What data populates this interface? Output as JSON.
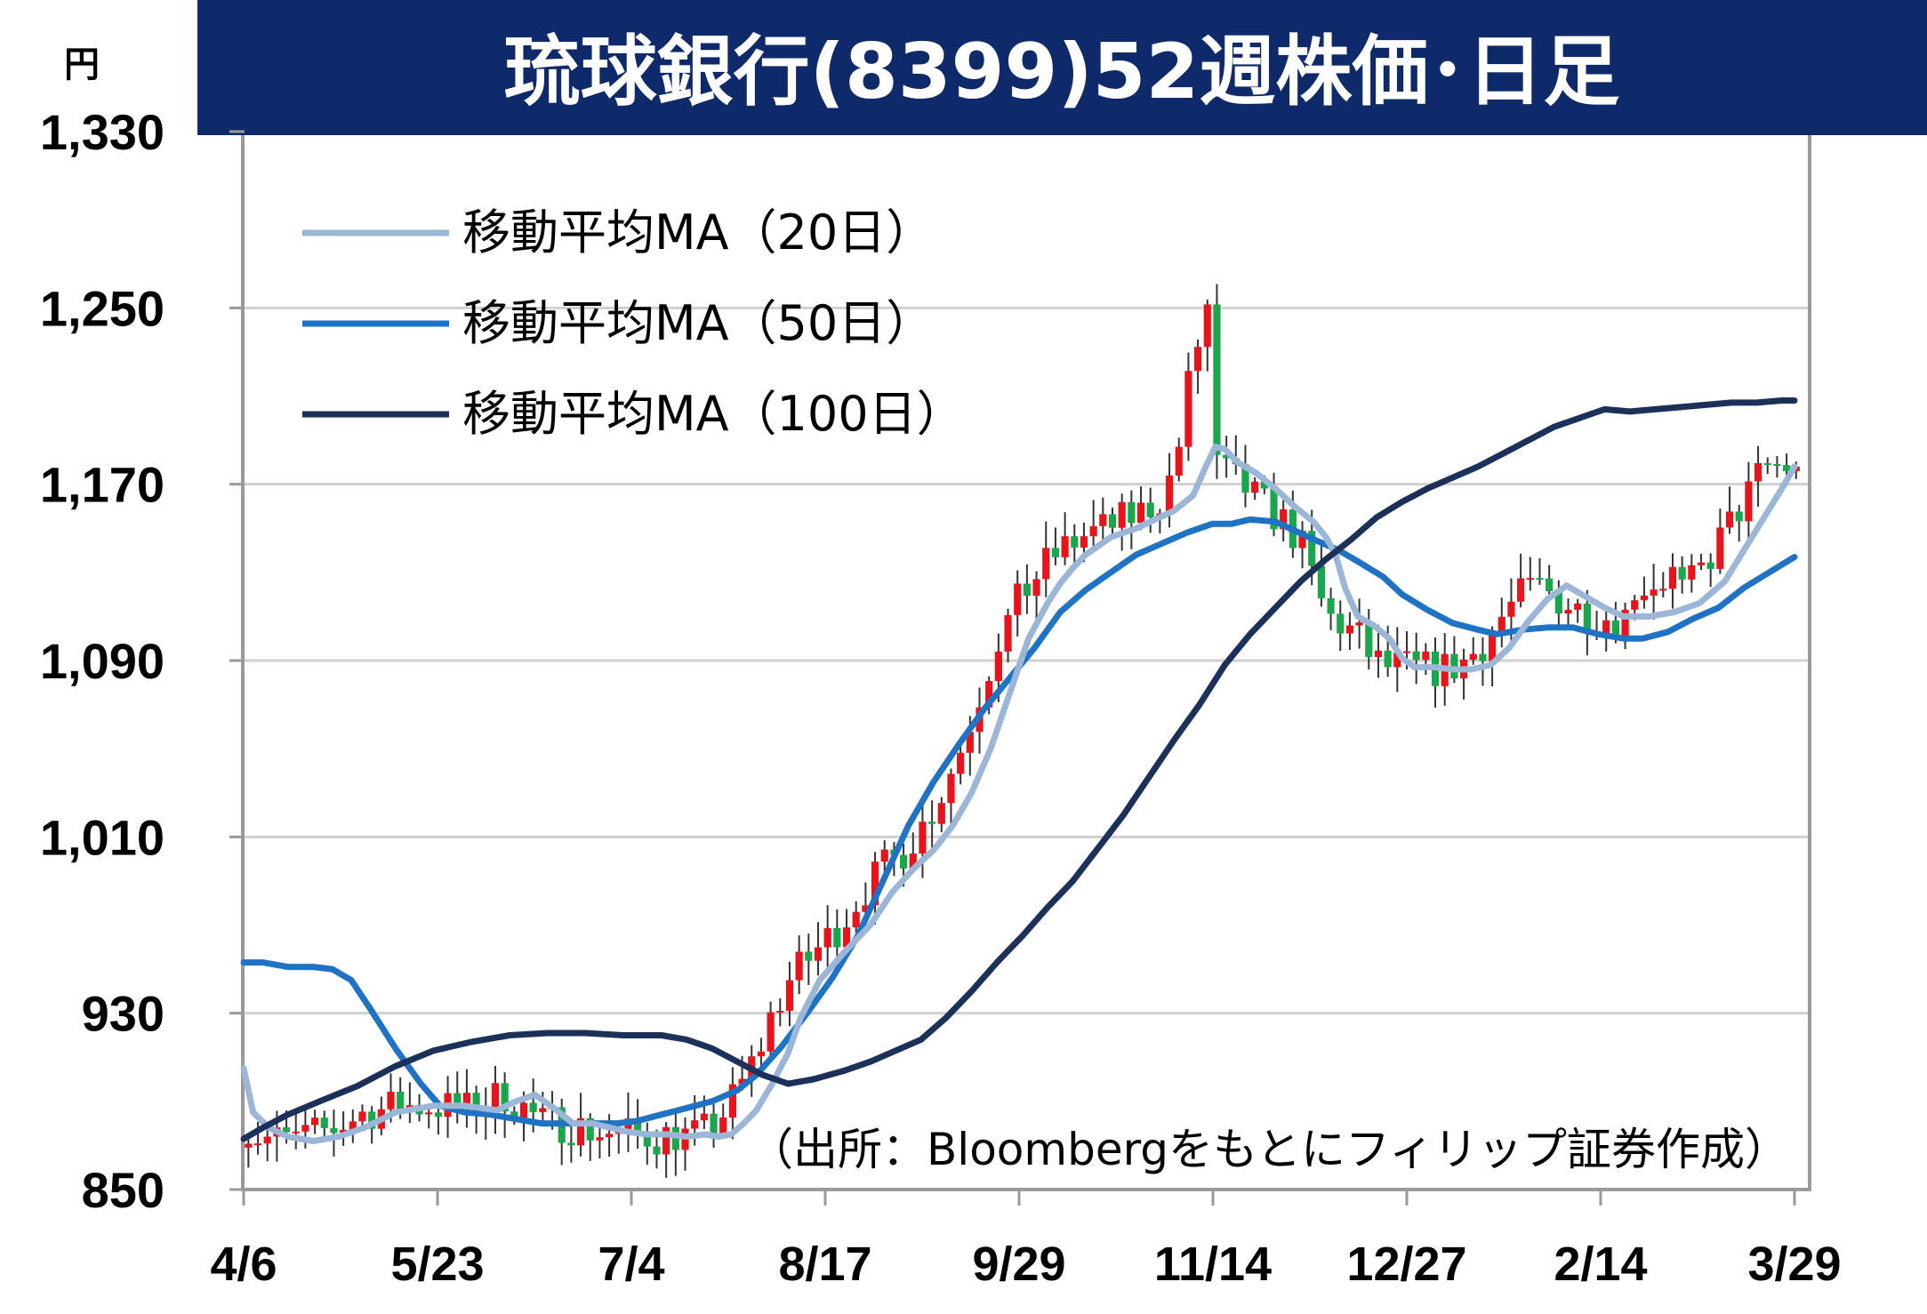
{
  "chart_data": {
    "type": "candlestick",
    "title": "琉球銀行(8399)52週株価･日足",
    "ylabel": "円",
    "ylim": [
      850,
      1330
    ],
    "yticks": [
      "1,330",
      "1,250",
      "1,170",
      "1,090",
      "1,010",
      "930",
      "850"
    ],
    "ytick_values": [
      1330,
      1250,
      1170,
      1090,
      1010,
      930,
      850
    ],
    "xticks": [
      "4/6",
      "5/23",
      "7/4",
      "8/17",
      "9/29",
      "11/14",
      "12/27",
      "2/14",
      "3/29"
    ],
    "grid": true,
    "legend_placement": "top-left",
    "source": "（出所：Bloombergをもとにフィリップ証券作成）",
    "colors": {
      "title_bg": "#0f2a6b",
      "up": "#e8141c",
      "down": "#1aa64a",
      "ma20": "#9cb6d8",
      "ma50": "#1f73c4",
      "ma100": "#1b3159",
      "grid": "#d0d0d0",
      "border": "#999999"
    },
    "series": [
      {
        "name": "移動平均MA（20日）",
        "key": "ma20",
        "points": [
          [
            0,
            905
          ],
          [
            3,
            885
          ],
          [
            8,
            878
          ],
          [
            14,
            874
          ],
          [
            22,
            872
          ],
          [
            30,
            874
          ],
          [
            38,
            878
          ],
          [
            48,
            885
          ],
          [
            60,
            888
          ],
          [
            70,
            888
          ],
          [
            80,
            886
          ],
          [
            86,
            890
          ],
          [
            92,
            893
          ],
          [
            98,
            887
          ],
          [
            104,
            880
          ],
          [
            110,
            880
          ],
          [
            116,
            878
          ],
          [
            122,
            876
          ],
          [
            128,
            875
          ],
          [
            134,
            875
          ],
          [
            140,
            874
          ],
          [
            146,
            875
          ],
          [
            150,
            874
          ],
          [
            154,
            875
          ],
          [
            158,
            880
          ],
          [
            162,
            886
          ],
          [
            167,
            898
          ],
          [
            172,
            912
          ],
          [
            176,
            928
          ],
          [
            182,
            945
          ],
          [
            190,
            958
          ],
          [
            198,
            970
          ],
          [
            205,
            985
          ],
          [
            212,
            996
          ],
          [
            218,
            1004
          ],
          [
            224,
            1015
          ],
          [
            230,
            1030
          ],
          [
            236,
            1050
          ],
          [
            242,
            1075
          ],
          [
            248,
            1100
          ],
          [
            254,
            1116
          ],
          [
            258,
            1125
          ],
          [
            262,
            1132
          ],
          [
            266,
            1138
          ],
          [
            270,
            1142
          ],
          [
            274,
            1146
          ],
          [
            278,
            1148
          ],
          [
            282,
            1150
          ],
          [
            288,
            1154
          ],
          [
            294,
            1158
          ],
          [
            300,
            1165
          ],
          [
            304,
            1178
          ],
          [
            307,
            1187
          ],
          [
            310,
            1186
          ],
          [
            314,
            1180
          ],
          [
            320,
            1175
          ],
          [
            326,
            1168
          ],
          [
            332,
            1160
          ],
          [
            338,
            1153
          ],
          [
            342,
            1146
          ],
          [
            345,
            1138
          ],
          [
            348,
            1123
          ],
          [
            352,
            1110
          ],
          [
            357,
            1106
          ],
          [
            362,
            1100
          ],
          [
            366,
            1091
          ],
          [
            370,
            1087
          ],
          [
            376,
            1087
          ],
          [
            382,
            1086
          ],
          [
            388,
            1086
          ],
          [
            394,
            1088
          ],
          [
            400,
            1096
          ],
          [
            406,
            1108
          ],
          [
            412,
            1118
          ],
          [
            418,
            1124
          ],
          [
            424,
            1119
          ],
          [
            430,
            1114
          ],
          [
            436,
            1110
          ],
          [
            444,
            1110
          ],
          [
            452,
            1112
          ],
          [
            460,
            1116
          ],
          [
            468,
            1126
          ],
          [
            474,
            1140
          ],
          [
            480,
            1154
          ],
          [
            486,
            1168
          ],
          [
            490,
            1178
          ]
        ]
      },
      {
        "name": "移動平均MA（50日）",
        "key": "ma50",
        "points": [
          [
            0,
            953
          ],
          [
            6,
            953
          ],
          [
            14,
            951
          ],
          [
            22,
            951
          ],
          [
            28,
            950
          ],
          [
            34,
            945
          ],
          [
            40,
            932
          ],
          [
            48,
            914
          ],
          [
            56,
            898
          ],
          [
            62,
            888
          ],
          [
            70,
            885
          ],
          [
            78,
            884
          ],
          [
            86,
            882
          ],
          [
            94,
            880
          ],
          [
            102,
            880
          ],
          [
            110,
            880
          ],
          [
            118,
            880
          ],
          [
            124,
            881
          ],
          [
            132,
            884
          ],
          [
            140,
            887
          ],
          [
            148,
            890
          ],
          [
            156,
            895
          ],
          [
            162,
            902
          ],
          [
            170,
            915
          ],
          [
            178,
            930
          ],
          [
            186,
            946
          ],
          [
            194,
            965
          ],
          [
            202,
            990
          ],
          [
            210,
            1015
          ],
          [
            218,
            1035
          ],
          [
            226,
            1052
          ],
          [
            234,
            1068
          ],
          [
            242,
            1082
          ],
          [
            250,
            1096
          ],
          [
            258,
            1112
          ],
          [
            266,
            1122
          ],
          [
            274,
            1130
          ],
          [
            282,
            1138
          ],
          [
            290,
            1143
          ],
          [
            298,
            1148
          ],
          [
            306,
            1152
          ],
          [
            312,
            1152
          ],
          [
            318,
            1154
          ],
          [
            326,
            1153
          ],
          [
            332,
            1149
          ],
          [
            338,
            1145
          ],
          [
            346,
            1140
          ],
          [
            352,
            1135
          ],
          [
            360,
            1128
          ],
          [
            366,
            1120
          ],
          [
            374,
            1113
          ],
          [
            382,
            1107
          ],
          [
            390,
            1104
          ],
          [
            396,
            1102
          ],
          [
            404,
            1104
          ],
          [
            412,
            1105
          ],
          [
            420,
            1105
          ],
          [
            428,
            1102
          ],
          [
            436,
            1100
          ],
          [
            442,
            1100
          ],
          [
            450,
            1103
          ],
          [
            458,
            1109
          ],
          [
            466,
            1114
          ],
          [
            474,
            1123
          ],
          [
            482,
            1130
          ],
          [
            490,
            1137
          ]
        ]
      },
      {
        "name": "移動平均MA（100日）",
        "key": "ma100",
        "points": [
          [
            0,
            873
          ],
          [
            6,
            878
          ],
          [
            14,
            884
          ],
          [
            24,
            890
          ],
          [
            36,
            897
          ],
          [
            48,
            906
          ],
          [
            60,
            913
          ],
          [
            72,
            917
          ],
          [
            84,
            920
          ],
          [
            96,
            921
          ],
          [
            108,
            921
          ],
          [
            120,
            920
          ],
          [
            132,
            920
          ],
          [
            140,
            918
          ],
          [
            148,
            914
          ],
          [
            156,
            908
          ],
          [
            164,
            902
          ],
          [
            172,
            898
          ],
          [
            180,
            900
          ],
          [
            190,
            904
          ],
          [
            198,
            908
          ],
          [
            206,
            913
          ],
          [
            214,
            918
          ],
          [
            222,
            928
          ],
          [
            230,
            940
          ],
          [
            238,
            953
          ],
          [
            246,
            965
          ],
          [
            254,
            978
          ],
          [
            262,
            990
          ],
          [
            270,
            1005
          ],
          [
            278,
            1020
          ],
          [
            286,
            1037
          ],
          [
            294,
            1054
          ],
          [
            302,
            1070
          ],
          [
            310,
            1088
          ],
          [
            318,
            1102
          ],
          [
            326,
            1114
          ],
          [
            334,
            1126
          ],
          [
            342,
            1136
          ],
          [
            350,
            1145
          ],
          [
            358,
            1155
          ],
          [
            366,
            1162
          ],
          [
            374,
            1168
          ],
          [
            382,
            1173
          ],
          [
            390,
            1178
          ],
          [
            398,
            1184
          ],
          [
            406,
            1190
          ],
          [
            414,
            1196
          ],
          [
            422,
            1200
          ],
          [
            430,
            1204
          ],
          [
            438,
            1203
          ],
          [
            446,
            1204
          ],
          [
            454,
            1205
          ],
          [
            462,
            1206
          ],
          [
            470,
            1207
          ],
          [
            478,
            1207
          ],
          [
            486,
            1208
          ],
          [
            490,
            1208
          ]
        ]
      }
    ]
  }
}
